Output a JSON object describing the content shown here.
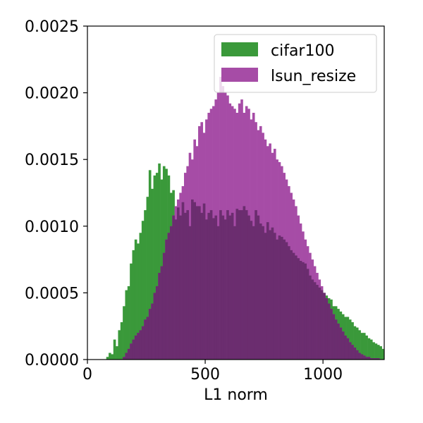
{
  "chart_data": {
    "type": "histogram",
    "xlabel": "L1 norm",
    "ylabel": "",
    "title": "",
    "xlim": [
      0,
      1260
    ],
    "ylim": [
      0,
      0.0025
    ],
    "x_ticks": [
      0,
      500,
      1000
    ],
    "x_tick_labels": [
      "0",
      "500",
      "1000"
    ],
    "y_ticks": [
      0.0,
      0.0005,
      0.001,
      0.0015,
      0.002,
      0.0025
    ],
    "y_tick_labels": [
      "0.0000",
      "0.0005",
      "0.0010",
      "0.0015",
      "0.0020",
      "0.0025"
    ],
    "grid": false,
    "legend_position": "top-right",
    "bin_width": 10,
    "overlap_color": "#6b2d6f",
    "series": [
      {
        "name": "cifar100",
        "color": "#3a993a",
        "bin_start": 80,
        "densities": [
          2e-05,
          5e-05,
          4e-05,
          0.00015,
          0.0001,
          0.00022,
          0.00028,
          0.0004,
          0.00052,
          0.00055,
          0.00072,
          0.00082,
          0.0009,
          0.00087,
          0.00095,
          0.00104,
          0.00112,
          0.00122,
          0.00142,
          0.00128,
          0.00138,
          0.0014,
          0.00147,
          0.00135,
          0.00145,
          0.00143,
          0.00138,
          0.00125,
          0.00127,
          0.00105,
          0.00114,
          0.00108,
          0.00118,
          0.0011,
          0.00112,
          0.001,
          0.0012,
          0.00118,
          0.00115,
          0.00115,
          0.0011,
          0.00117,
          0.00105,
          0.0011,
          0.00112,
          0.00106,
          0.00108,
          0.001,
          0.00112,
          0.00108,
          0.00105,
          0.00112,
          0.00108,
          0.0011,
          0.001,
          0.00113,
          0.00112,
          0.00112,
          0.00115,
          0.00112,
          0.00108,
          0.00104,
          0.001,
          0.00112,
          0.00108,
          0.00102,
          0.001,
          0.00095,
          0.00103,
          0.00097,
          0.00099,
          0.00095,
          0.0009,
          0.00093,
          0.00092,
          0.0009,
          0.00088,
          0.00085,
          0.00082,
          0.0008,
          0.00078,
          0.00076,
          0.00074,
          0.00073,
          0.00072,
          0.00068,
          0.00063,
          0.0006,
          0.00058,
          0.00056,
          0.00054,
          0.00052,
          0.0005,
          0.00048,
          0.00046,
          0.00045,
          0.0004,
          0.0004,
          0.00038,
          0.00036,
          0.00034,
          0.00032,
          0.00032,
          0.0003,
          0.00028,
          0.00025,
          0.00024,
          0.00022,
          0.0002,
          0.0002,
          0.00018,
          0.00016,
          0.00015,
          0.00013,
          0.00012,
          0.00011,
          0.0001,
          8e-05
        ]
      },
      {
        "name": "lsun_resize",
        "color": "#a64ca6",
        "bin_start": 150,
        "densities": [
          2e-05,
          5e-05,
          8e-05,
          0.00012,
          0.00015,
          0.00018,
          0.0002,
          0.00022,
          0.00025,
          0.0003,
          0.00032,
          0.00038,
          0.00042,
          0.0005,
          0.00055,
          0.00065,
          0.0007,
          0.0008,
          0.0009,
          0.00095,
          0.001,
          0.00108,
          0.00115,
          0.0012,
          0.00125,
          0.0013,
          0.0014,
          0.00145,
          0.00155,
          0.0015,
          0.00165,
          0.0016,
          0.00175,
          0.00178,
          0.0017,
          0.0018,
          0.00185,
          0.00188,
          0.0019,
          0.00195,
          0.002,
          0.00212,
          0.00205,
          0.002,
          0.00198,
          0.00192,
          0.0019,
          0.00188,
          0.00185,
          0.00192,
          0.00195,
          0.00185,
          0.0019,
          0.00188,
          0.0018,
          0.00185,
          0.00178,
          0.00172,
          0.00175,
          0.0017,
          0.00165,
          0.0016,
          0.00162,
          0.00155,
          0.00158,
          0.0015,
          0.00148,
          0.00145,
          0.0014,
          0.00135,
          0.0013,
          0.00125,
          0.0012,
          0.00115,
          0.00108,
          0.00102,
          0.00096,
          0.0009,
          0.00085,
          0.0008,
          0.00075,
          0.0007,
          0.00065,
          0.0006,
          0.00055,
          0.0005,
          0.00046,
          0.00042,
          0.00038,
          0.00034,
          0.0003,
          0.00027,
          0.00024,
          0.00021,
          0.00018,
          0.00016,
          0.00013,
          0.00011,
          9e-05,
          7e-05,
          5e-05,
          4e-05,
          3e-05,
          2e-05,
          2e-05,
          1e-05,
          1e-05,
          1e-05,
          1e-05,
          0.0,
          0.0
        ]
      }
    ]
  }
}
